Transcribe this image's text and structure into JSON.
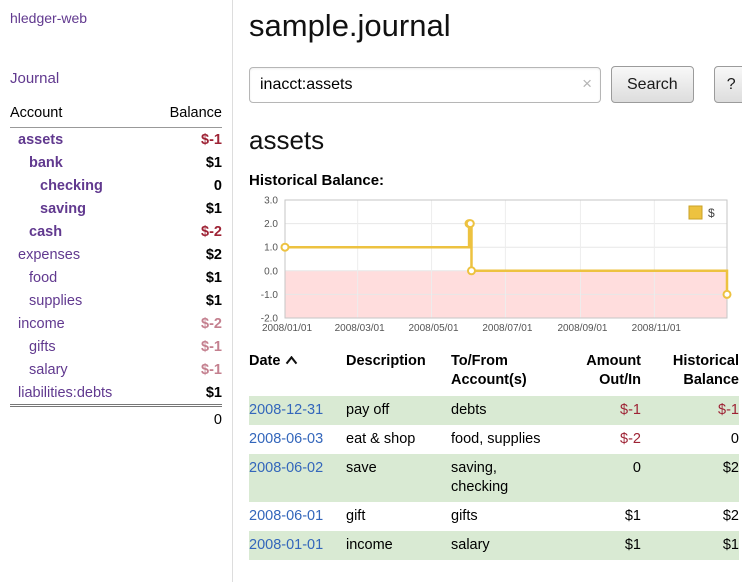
{
  "colors": {
    "link_purple": "#61398f",
    "date_link_blue": "#3366bb",
    "negative_strong": "#9e2335",
    "negative_soft": "#c4808f",
    "row_green": "#d9ead3"
  },
  "sidebar": {
    "app_title": "hledger-web",
    "journal_link": "Journal",
    "accounts_table": {
      "account_header": "Account",
      "balance_header": "Balance",
      "rows": [
        {
          "account": "assets",
          "balance": "$-1",
          "indent": 0,
          "bold": true,
          "balance_color": "negative-strong"
        },
        {
          "account": "bank",
          "balance": "$1",
          "indent": 1,
          "bold": true,
          "balance_color": "normal"
        },
        {
          "account": "checking",
          "balance": "0",
          "indent": 2,
          "bold": true,
          "balance_color": "normal"
        },
        {
          "account": "saving",
          "balance": "$1",
          "indent": 2,
          "bold": true,
          "balance_color": "normal"
        },
        {
          "account": "cash",
          "balance": "$-2",
          "indent": 1,
          "bold": true,
          "balance_color": "negative-strong"
        },
        {
          "account": "expenses",
          "balance": "$2",
          "indent": 0,
          "bold": false,
          "balance_color": "normal"
        },
        {
          "account": "food",
          "balance": "$1",
          "indent": 1,
          "bold": false,
          "balance_color": "normal"
        },
        {
          "account": "supplies",
          "balance": "$1",
          "indent": 1,
          "bold": false,
          "balance_color": "normal"
        },
        {
          "account": "income",
          "balance": "$-2",
          "indent": 0,
          "bold": false,
          "balance_color": "negative-soft"
        },
        {
          "account": "gifts",
          "balance": "$-1",
          "indent": 1,
          "bold": false,
          "balance_color": "negative-soft"
        },
        {
          "account": "salary",
          "balance": "$-1",
          "indent": 1,
          "bold": false,
          "balance_color": "negative-soft"
        },
        {
          "account": "liabilities:debts",
          "balance": "$1",
          "indent": 0,
          "bold": false,
          "balance_color": "normal"
        }
      ],
      "total": "0"
    }
  },
  "header": {
    "title": "sample.journal"
  },
  "search": {
    "value": "inacct:assets",
    "clear_icon": "×",
    "search_button": "Search",
    "help_button": "?"
  },
  "account_page": {
    "title": "assets",
    "chart_heading": "Historical Balance:"
  },
  "chart_data": {
    "type": "line",
    "title": "Historical Balance",
    "x_domain": [
      "2008-01-01",
      "2008-12-31"
    ],
    "ylim": [
      -2,
      3
    ],
    "y_ticks": [
      "3.0",
      "2.0",
      "1.0",
      "0.0",
      "-1.0",
      "-2.0"
    ],
    "x_ticks": [
      "2008/01/01",
      "2008/03/01",
      "2008/05/01",
      "2008/07/01",
      "2008/09/01",
      "2008/11/01"
    ],
    "grid": true,
    "legend_position": "top-right",
    "negative_region": {
      "from": -2,
      "to": 0,
      "color": "#ffdddd"
    },
    "series": [
      {
        "name": "$",
        "color": "#edc240",
        "step": true,
        "points": [
          {
            "x": "2008-01-01",
            "y": 1
          },
          {
            "x": "2008-06-01",
            "y": 2
          },
          {
            "x": "2008-06-02",
            "y": 2
          },
          {
            "x": "2008-06-03",
            "y": 0
          },
          {
            "x": "2008-12-31",
            "y": -1
          }
        ]
      }
    ]
  },
  "register": {
    "columns": {
      "date": "Date",
      "description": "Description",
      "account": "To/From Account(s)",
      "amount": "Amount Out/In",
      "balance": "Historical Balance"
    },
    "sort": {
      "column": "date",
      "icon": "caret-up"
    },
    "rows": [
      {
        "date": "2008-12-31",
        "description": "pay off",
        "account": "debts",
        "amount": "$-1",
        "balance": "$-1",
        "amount_negative": true,
        "balance_negative": true,
        "shaded": true
      },
      {
        "date": "2008-06-03",
        "description": "eat & shop",
        "account": "food, supplies",
        "amount": "$-2",
        "balance": "0",
        "amount_negative": true,
        "balance_negative": false,
        "shaded": false
      },
      {
        "date": "2008-06-02",
        "description": "save",
        "account": "saving, checking",
        "amount": "0",
        "balance": "$2",
        "amount_negative": false,
        "balance_negative": false,
        "shaded": true
      },
      {
        "date": "2008-06-01",
        "description": "gift",
        "account": "gifts",
        "amount": "$1",
        "balance": "$2",
        "amount_negative": false,
        "balance_negative": false,
        "shaded": false
      },
      {
        "date": "2008-01-01",
        "description": "income",
        "account": "salary",
        "amount": "$1",
        "balance": "$1",
        "amount_negative": false,
        "balance_negative": false,
        "shaded": true
      }
    ]
  }
}
